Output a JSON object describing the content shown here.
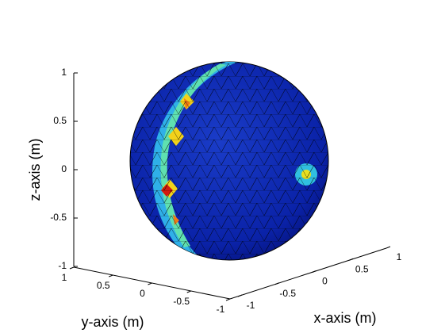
{
  "chart_data": {
    "type": "sphere3d",
    "xlabel": "x-axis (m)",
    "ylabel": "y-axis (m)",
    "zlabel": "z-axis (m)",
    "xlim": [
      -1,
      1
    ],
    "xticks": [
      -1,
      -0.5,
      0,
      0.5,
      1
    ],
    "ylim": [
      -1,
      1
    ],
    "yticks": [
      -1,
      -0.5,
      0,
      0.5,
      1
    ],
    "zlim": [
      -1,
      1
    ],
    "zticks": [
      -1,
      -0.5,
      0,
      0.5,
      1
    ]
  }
}
